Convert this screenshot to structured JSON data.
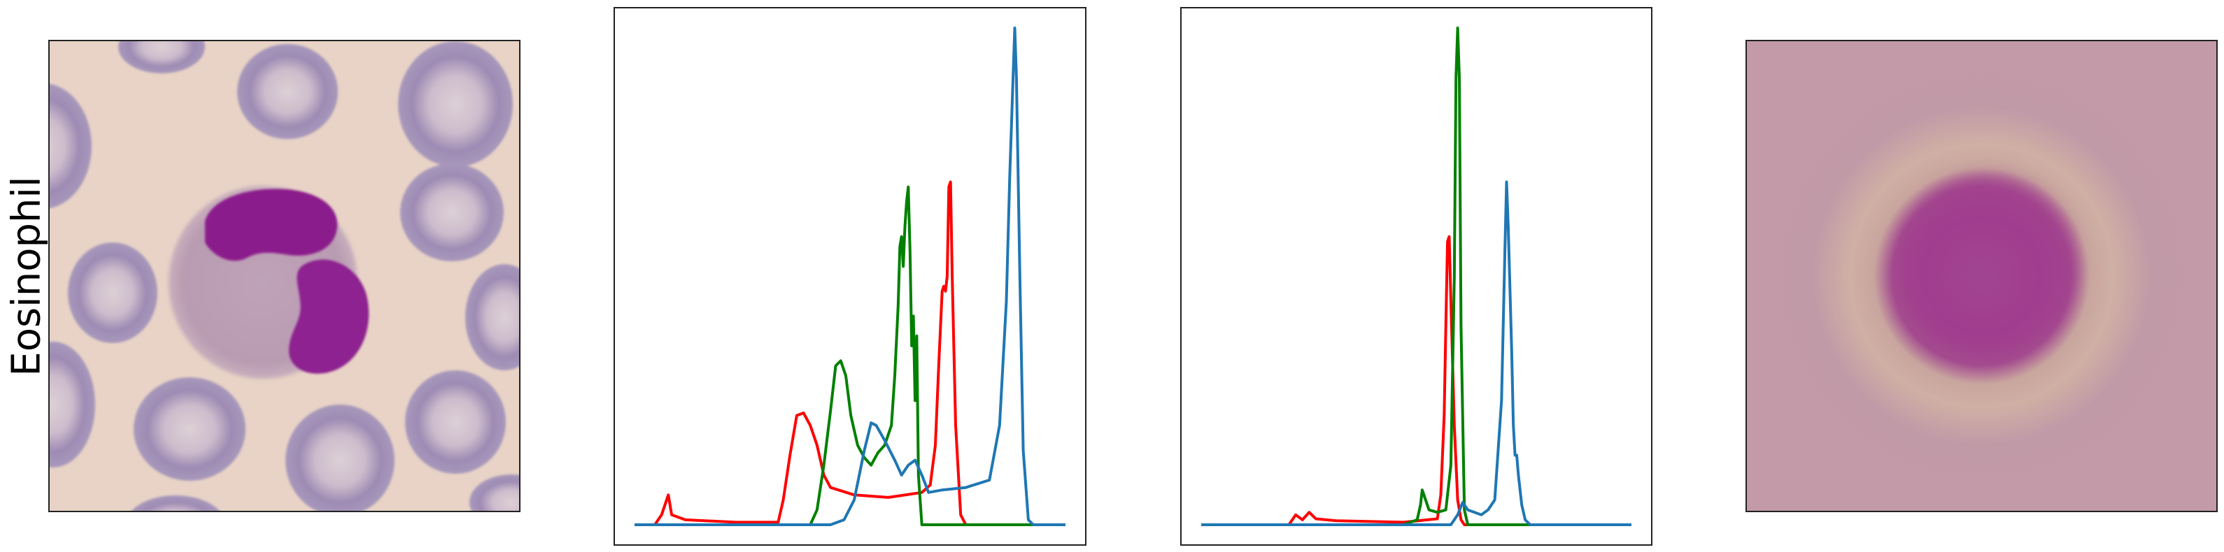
{
  "row_label": "Eosinophil",
  "images": {
    "cell_image": {
      "subject": "eosinophil-blood-smear",
      "colors": {
        "background": "#e9d2c4",
        "rbc_rim": "#a593b8",
        "rbc_center": "#d9c8cf",
        "nucleus": "#8a1f8a",
        "cytoplasm": "#bb9fb3"
      }
    },
    "mean_image": {
      "subject": "averaged-cell",
      "colors": {
        "background": "#c39aa8",
        "center_blob": "#a13e8e",
        "halo": "#cfae9f"
      }
    }
  },
  "chart_data": [
    {
      "type": "line",
      "panel": "histogram-1",
      "x": [
        0,
        255
      ],
      "xlim": [
        0,
        255
      ],
      "ylim": [
        0,
        1
      ],
      "grid": false,
      "legend": "none",
      "series": [
        {
          "color": "#ff0000",
          "points": [
            [
              0,
              0
            ],
            [
              12,
              0
            ],
            [
              16,
              0.02
            ],
            [
              20,
              0.06
            ],
            [
              22,
              0.02
            ],
            [
              30,
              0.01
            ],
            [
              60,
              0.005
            ],
            [
              85,
              0.005
            ],
            [
              88,
              0.05
            ],
            [
              92,
              0.14
            ],
            [
              96,
              0.22
            ],
            [
              100,
              0.225
            ],
            [
              104,
              0.2
            ],
            [
              108,
              0.16
            ],
            [
              112,
              0.1
            ],
            [
              116,
              0.075
            ],
            [
              130,
              0.06
            ],
            [
              150,
              0.055
            ],
            [
              170,
              0.065
            ],
            [
              175,
              0.08
            ],
            [
              178,
              0.16
            ],
            [
              180,
              0.32
            ],
            [
              182,
              0.47
            ],
            [
              183,
              0.48
            ],
            [
              184,
              0.47
            ],
            [
              185,
              0.5
            ],
            [
              186,
              0.68
            ],
            [
              187,
              0.69
            ],
            [
              188,
              0.5
            ],
            [
              190,
              0.2
            ],
            [
              193,
              0.02
            ],
            [
              196,
              0
            ],
            [
              255,
              0
            ]
          ]
        },
        {
          "color": "#008000",
          "points": [
            [
              0,
              0
            ],
            [
              104,
              0
            ],
            [
              108,
              0.03
            ],
            [
              112,
              0.12
            ],
            [
              116,
              0.23
            ],
            [
              119,
              0.32
            ],
            [
              122,
              0.33
            ],
            [
              125,
              0.3
            ],
            [
              128,
              0.22
            ],
            [
              132,
              0.16
            ],
            [
              136,
              0.135
            ],
            [
              140,
              0.12
            ],
            [
              144,
              0.145
            ],
            [
              148,
              0.16
            ],
            [
              152,
              0.2
            ],
            [
              154,
              0.3
            ],
            [
              156,
              0.44
            ],
            [
              157,
              0.56
            ],
            [
              158,
              0.58
            ],
            [
              159,
              0.52
            ],
            [
              160,
              0.6
            ],
            [
              161,
              0.65
            ],
            [
              162,
              0.68
            ],
            [
              163,
              0.55
            ],
            [
              164,
              0.36
            ],
            [
              165,
              0.42
            ],
            [
              166,
              0.25
            ],
            [
              167,
              0.38
            ],
            [
              168,
              0.1
            ],
            [
              170,
              0
            ],
            [
              255,
              0
            ]
          ]
        },
        {
          "color": "#1f77b4",
          "points": [
            [
              0,
              0
            ],
            [
              116,
              0
            ],
            [
              124,
              0.01
            ],
            [
              130,
              0.05
            ],
            [
              136,
              0.15
            ],
            [
              140,
              0.205
            ],
            [
              143,
              0.2
            ],
            [
              148,
              0.17
            ],
            [
              154,
              0.13
            ],
            [
              158,
              0.1
            ],
            [
              162,
              0.12
            ],
            [
              166,
              0.13
            ],
            [
              170,
              0.1
            ],
            [
              174,
              0.065
            ],
            [
              182,
              0.07
            ],
            [
              196,
              0.075
            ],
            [
              210,
              0.09
            ],
            [
              216,
              0.2
            ],
            [
              220,
              0.45
            ],
            [
              222,
              0.7
            ],
            [
              224,
              0.9
            ],
            [
              225,
              1.0
            ],
            [
              226,
              0.9
            ],
            [
              228,
              0.5
            ],
            [
              230,
              0.15
            ],
            [
              233,
              0.01
            ],
            [
              236,
              0
            ],
            [
              255,
              0
            ]
          ]
        }
      ]
    },
    {
      "type": "line",
      "panel": "histogram-2",
      "x": [
        0,
        255
      ],
      "xlim": [
        0,
        255
      ],
      "ylim": [
        0,
        1
      ],
      "grid": false,
      "legend": "none",
      "series": [
        {
          "color": "#ff0000",
          "points": [
            [
              0,
              0
            ],
            [
              52,
              0
            ],
            [
              56,
              0.02
            ],
            [
              60,
              0.01
            ],
            [
              64,
              0.025
            ],
            [
              68,
              0.012
            ],
            [
              80,
              0.008
            ],
            [
              120,
              0.005
            ],
            [
              140,
              0.012
            ],
            [
              142,
              0.06
            ],
            [
              144,
              0.22
            ],
            [
              145,
              0.4
            ],
            [
              146,
              0.57
            ],
            [
              147,
              0.58
            ],
            [
              148,
              0.45
            ],
            [
              150,
              0.2
            ],
            [
              152,
              0.05
            ],
            [
              154,
              0.01
            ],
            [
              156,
              0
            ],
            [
              255,
              0
            ]
          ]
        },
        {
          "color": "#008000",
          "points": [
            [
              0,
              0
            ],
            [
              120,
              0
            ],
            [
              128,
              0.01
            ],
            [
              130,
              0.04
            ],
            [
              131,
              0.07
            ],
            [
              133,
              0.05
            ],
            [
              135,
              0.03
            ],
            [
              140,
              0.025
            ],
            [
              145,
              0.03
            ],
            [
              148,
              0.12
            ],
            [
              150,
              0.5
            ],
            [
              151,
              0.9
            ],
            [
              152,
              1.0
            ],
            [
              153,
              0.9
            ],
            [
              154,
              0.4
            ],
            [
              156,
              0.03
            ],
            [
              158,
              0
            ],
            [
              255,
              0
            ]
          ]
        },
        {
          "color": "#1f77b4",
          "points": [
            [
              0,
              0
            ],
            [
              148,
              0
            ],
            [
              152,
              0.02
            ],
            [
              155,
              0.045
            ],
            [
              158,
              0.03
            ],
            [
              166,
              0.02
            ],
            [
              170,
              0.03
            ],
            [
              174,
              0.05
            ],
            [
              178,
              0.25
            ],
            [
              180,
              0.55
            ],
            [
              181,
              0.69
            ],
            [
              182,
              0.6
            ],
            [
              184,
              0.35
            ],
            [
              185,
              0.2
            ],
            [
              186,
              0.14
            ],
            [
              187,
              0.14
            ],
            [
              188,
              0.1
            ],
            [
              190,
              0.04
            ],
            [
              192,
              0.01
            ],
            [
              195,
              0
            ],
            [
              255,
              0
            ]
          ]
        }
      ]
    }
  ]
}
